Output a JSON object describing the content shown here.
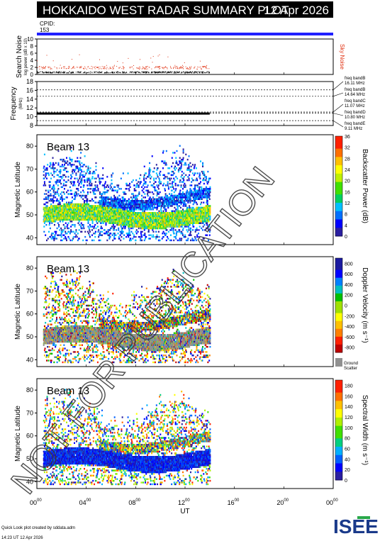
{
  "title": "HOKKAIDO WEST RADAR SUMMARY PLOT",
  "date": "12 Apr 2026",
  "cpid_label": "CPID:",
  "cpid_value": "153",
  "watermark": "NOT FOR PUBLICATION",
  "footer": {
    "line1": "Quick Look plot created by sddata.adm",
    "line2": "14:23 UT 12 Apr 2026",
    "logo": "ISEE"
  },
  "colors": {
    "title_bar": "#000000",
    "cpid_bar": "#2020ff",
    "noise_dots": "#e03010",
    "sky_noise_label": "#e03010"
  },
  "chart_data": [
    {
      "type": "scatter",
      "name": "search-noise",
      "ylabel": "Search Noise",
      "ylabel_sub": "log power (dB x 10)",
      "side_label": "Sky Noise",
      "yticks": [
        "0",
        "2",
        "4",
        "6",
        "8",
        "10"
      ],
      "ylim": [
        0,
        10
      ],
      "x_range_hours": [
        0,
        14
      ],
      "series": [
        {
          "name": "Search Noise",
          "level": 0.5,
          "color": "#000000"
        },
        {
          "name": "Sky Noise",
          "level": 2.0,
          "color": "#e03010"
        }
      ]
    },
    {
      "type": "line",
      "name": "frequency",
      "ylabel": "Frequency",
      "ylabel_sub": "(MHz)",
      "yticks": [
        "8",
        "10",
        "12",
        "14",
        "16",
        "18"
      ],
      "ylim": [
        8,
        18
      ],
      "x_range_hours": [
        0,
        14
      ],
      "freq_value": 10.8,
      "bands": [
        {
          "label": "freq bandB",
          "value": "16.11 MHz",
          "mhz": 16.11
        },
        {
          "label": "freq bandB",
          "value": "14.64 MHz",
          "mhz": 14.64
        },
        {
          "label": "freq bandC",
          "value": "11.07 MHz",
          "mhz": 11.07
        },
        {
          "label": "freq bandD",
          "value": "10.80 MHz",
          "mhz": 10.8
        },
        {
          "label": "freq bandE",
          "value": "9.11 MHz",
          "mhz": 9.11
        }
      ]
    },
    {
      "type": "heatmap",
      "name": "backscatter-power",
      "beam": "Beam 13",
      "ylabel": "Magnetic Latitude",
      "yticks": [
        "40",
        "50",
        "60",
        "70",
        "80"
      ],
      "ylim": [
        37,
        85
      ],
      "colorbar_label": "Backscatter Power (dB)",
      "colorbar_ticks": [
        "0",
        "4",
        "8",
        "12",
        "16",
        "20",
        "24",
        "28",
        "32",
        "36"
      ],
      "colorbar_range": [
        0,
        36
      ]
    },
    {
      "type": "heatmap",
      "name": "doppler-velocity",
      "beam": "Beam 13",
      "ylabel": "Magnetic Latitude",
      "yticks": [
        "40",
        "50",
        "60",
        "70",
        "80"
      ],
      "ylim": [
        37,
        85
      ],
      "colorbar_label": "Doppler Velocity (m s⁻¹)",
      "colorbar_ticks": [
        "800",
        "600",
        "400",
        "200",
        "0",
        "-200",
        "-400",
        "-600",
        "-800"
      ],
      "colorbar_range": [
        -900,
        900
      ],
      "ground_scatter_label_1": "Ground",
      "ground_scatter_label_2": "Scatter"
    },
    {
      "type": "heatmap",
      "name": "spectral-width",
      "beam": "Beam 13",
      "ylabel": "Magnetic Latitude",
      "yticks": [
        "40",
        "50",
        "60",
        "70",
        "80"
      ],
      "ylim": [
        37,
        85
      ],
      "colorbar_label": "Spectral Width (m s⁻¹)",
      "colorbar_ticks": [
        "0",
        "20",
        "40",
        "60",
        "80",
        "100",
        "120",
        "140",
        "160",
        "180"
      ],
      "colorbar_range": [
        0,
        190
      ]
    }
  ],
  "x_axis": {
    "label": "UT",
    "ticks": [
      "00",
      "04",
      "08",
      "12",
      "16",
      "20",
      "00"
    ],
    "tick_sup": "00",
    "range_hours": [
      0,
      24
    ],
    "data_end_hours": 14
  }
}
